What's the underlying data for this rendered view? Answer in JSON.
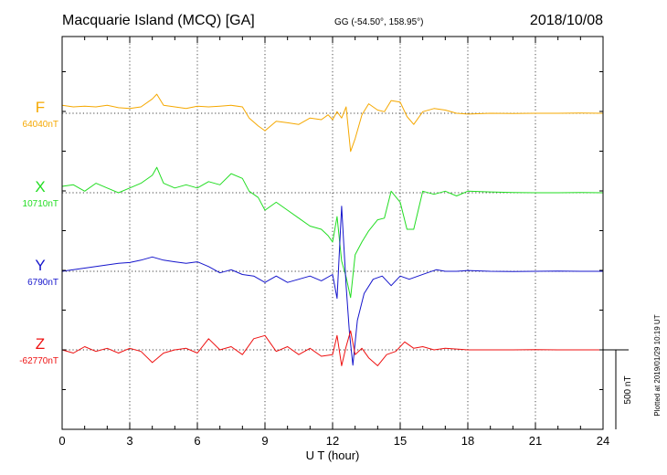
{
  "header": {
    "station": "Macquarie Island (MCQ)  [GA]",
    "coords": "GG (-54.50°, 158.95°)",
    "date": "2018/10/08"
  },
  "footer": {
    "plotted": "Plotted at 2019/01/29 10:19 UT"
  },
  "chart_data": {
    "type": "line",
    "xlabel": "U T (hour)",
    "xlim": [
      0,
      24
    ],
    "xticks": [
      0,
      3,
      6,
      9,
      12,
      15,
      18,
      21,
      24
    ],
    "scale_label": "500 nT",
    "grid": true,
    "series": [
      {
        "name": "F",
        "baseline_label": "64040nT",
        "baseline": 64040,
        "color": "#f5a800",
        "x": [
          0,
          0.5,
          1,
          1.5,
          2,
          2.5,
          3,
          3.5,
          4,
          4.2,
          4.5,
          5,
          5.5,
          6,
          6.5,
          7,
          7.5,
          8,
          8.3,
          8.7,
          9,
          9.5,
          10,
          10.5,
          11,
          11.5,
          11.8,
          12,
          12.2,
          12.4,
          12.6,
          12.8,
          13,
          13.3,
          13.6,
          14,
          14.3,
          14.6,
          15,
          15.3,
          15.6,
          16,
          16.5,
          17,
          17.5,
          18,
          19,
          20,
          21,
          22,
          23,
          24
        ],
        "y": [
          64090,
          64080,
          64085,
          64080,
          64090,
          64075,
          64070,
          64080,
          64130,
          64160,
          64090,
          64080,
          64070,
          64085,
          64080,
          64085,
          64090,
          64080,
          64010,
          63960,
          63930,
          63990,
          63980,
          63970,
          64010,
          64000,
          64030,
          64000,
          64050,
          64010,
          64080,
          63800,
          63880,
          64030,
          64100,
          64060,
          64050,
          64120,
          64110,
          64020,
          63970,
          64050,
          64070,
          64060,
          64040,
          64035,
          64040,
          64038,
          64040,
          64040,
          64042,
          64040
        ]
      },
      {
        "name": "X",
        "baseline_label": "10710nT",
        "baseline": 10710,
        "color": "#22dd22",
        "x": [
          0,
          0.5,
          1,
          1.5,
          2,
          2.5,
          3,
          3.5,
          4,
          4.2,
          4.5,
          5,
          5.5,
          6,
          6.5,
          7,
          7.5,
          8,
          8.3,
          8.7,
          9,
          9.5,
          10,
          10.5,
          11,
          11.5,
          11.8,
          12,
          12.2,
          12.4,
          12.6,
          12.8,
          13,
          13.3,
          13.6,
          14,
          14.3,
          14.6,
          15,
          15.3,
          15.6,
          16,
          16.5,
          17,
          17.5,
          18,
          19,
          20,
          21,
          22,
          23,
          24
        ],
        "y": [
          10750,
          10760,
          10720,
          10770,
          10740,
          10710,
          10740,
          10770,
          10820,
          10870,
          10770,
          10740,
          10760,
          10740,
          10780,
          10760,
          10830,
          10800,
          10720,
          10680,
          10600,
          10650,
          10600,
          10550,
          10500,
          10480,
          10440,
          10400,
          10560,
          10280,
          10180,
          10050,
          10320,
          10400,
          10470,
          10540,
          10550,
          10720,
          10650,
          10480,
          10480,
          10720,
          10700,
          10720,
          10690,
          10720,
          10715,
          10712,
          10710,
          10710,
          10712,
          10710
        ]
      },
      {
        "name": "Y",
        "baseline_label": "6790nT",
        "baseline": 6790,
        "color": "#1515cc",
        "x": [
          0,
          0.5,
          1,
          1.5,
          2,
          2.5,
          3,
          3.5,
          4,
          4.5,
          5,
          5.5,
          6,
          6.5,
          7,
          7.5,
          8,
          8.5,
          9,
          9.5,
          10,
          10.5,
          11,
          11.5,
          12,
          12.2,
          12.4,
          12.6,
          12.75,
          12.9,
          13.1,
          13.4,
          13.8,
          14.2,
          14.6,
          15,
          15.4,
          15.8,
          16.2,
          16.6,
          17,
          17.5,
          18,
          19,
          20,
          21,
          22,
          23,
          24
        ],
        "y": [
          6790,
          6800,
          6810,
          6820,
          6830,
          6840,
          6845,
          6860,
          6880,
          6860,
          6850,
          6840,
          6850,
          6820,
          6780,
          6800,
          6770,
          6760,
          6720,
          6760,
          6720,
          6740,
          6760,
          6730,
          6770,
          6620,
          7200,
          6700,
          6400,
          6200,
          6480,
          6650,
          6740,
          6760,
          6700,
          6760,
          6740,
          6760,
          6780,
          6800,
          6790,
          6790,
          6795,
          6790,
          6788,
          6790,
          6792,
          6790,
          6790
        ]
      },
      {
        "name": "Z",
        "baseline_label": "-62770nT",
        "baseline": -62770,
        "color": "#ee1111",
        "x": [
          0,
          0.5,
          1,
          1.5,
          2,
          2.5,
          3,
          3.5,
          4,
          4.5,
          5,
          5.5,
          6,
          6.5,
          7,
          7.5,
          8,
          8.5,
          9,
          9.5,
          10,
          10.5,
          11,
          11.5,
          12,
          12.2,
          12.4,
          12.6,
          12.8,
          13,
          13.3,
          13.6,
          14,
          14.4,
          14.8,
          15.2,
          15.6,
          16,
          16.5,
          17,
          17.5,
          18,
          19,
          20,
          21,
          22,
          23,
          24
        ],
        "y": [
          -62770,
          -62790,
          -62750,
          -62780,
          -62760,
          -62790,
          -62760,
          -62780,
          -62850,
          -62790,
          -62770,
          -62760,
          -62790,
          -62700,
          -62770,
          -62750,
          -62800,
          -62700,
          -62680,
          -62780,
          -62750,
          -62800,
          -62760,
          -62810,
          -62800,
          -62680,
          -62870,
          -62750,
          -62650,
          -62800,
          -62760,
          -62820,
          -62870,
          -62800,
          -62780,
          -62720,
          -62760,
          -62750,
          -62770,
          -62760,
          -62765,
          -62770,
          -62770,
          -62770,
          -62768,
          -62770,
          -62770,
          -62770
        ]
      }
    ]
  }
}
